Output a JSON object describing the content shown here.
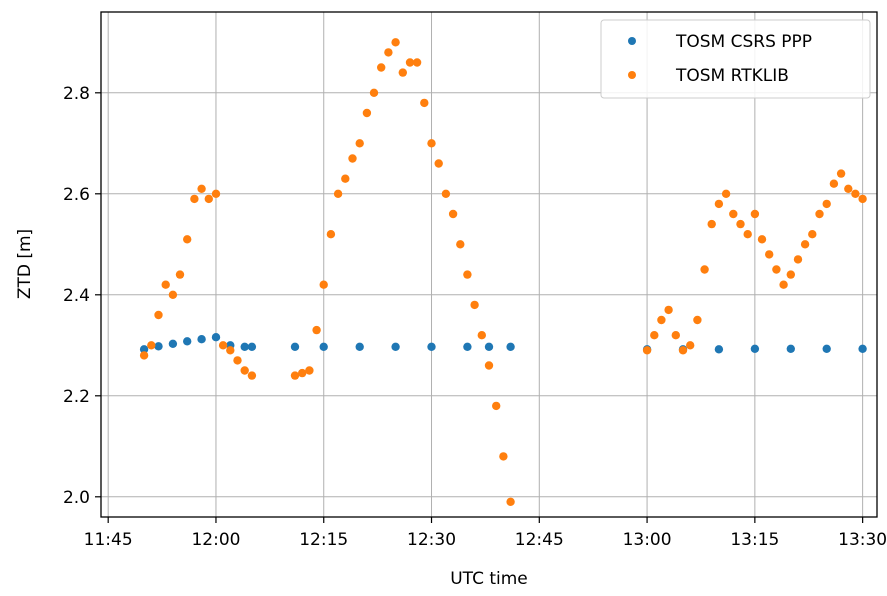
{
  "chart_data": {
    "type": "scatter",
    "xlabel": "UTC time",
    "ylabel": "ZTD [m]",
    "xlim": [
      "11:44",
      "13:32"
    ],
    "ylim": [
      1.96,
      2.96
    ],
    "x_ticks": [
      "11:45",
      "12:00",
      "12:15",
      "12:30",
      "12:45",
      "13:00",
      "13:15",
      "13:30"
    ],
    "y_ticks": [
      "2.0",
      "2.2",
      "2.4",
      "2.6",
      "2.8"
    ],
    "grid": true,
    "legend_position": "top-right",
    "series": [
      {
        "name": "TOSM CSRS PPP",
        "color": "#1f77b4",
        "points": [
          [
            "11:50",
            2.292
          ],
          [
            "11:52",
            2.298
          ],
          [
            "11:54",
            2.303
          ],
          [
            "11:56",
            2.308
          ],
          [
            "11:58",
            2.312
          ],
          [
            "12:00",
            2.316
          ],
          [
            "12:02",
            2.3
          ],
          [
            "12:04",
            2.297
          ],
          [
            "12:05",
            2.297
          ],
          [
            "12:11",
            2.297
          ],
          [
            "12:15",
            2.297
          ],
          [
            "12:20",
            2.297
          ],
          [
            "12:25",
            2.297
          ],
          [
            "12:30",
            2.297
          ],
          [
            "12:35",
            2.297
          ],
          [
            "12:38",
            2.297
          ],
          [
            "12:41",
            2.297
          ],
          [
            "13:00",
            2.292
          ],
          [
            "13:05",
            2.292
          ],
          [
            "13:10",
            2.292
          ],
          [
            "13:15",
            2.293
          ],
          [
            "13:20",
            2.293
          ],
          [
            "13:25",
            2.293
          ],
          [
            "13:30",
            2.293
          ]
        ]
      },
      {
        "name": "TOSM RTKLIB",
        "color": "#ff7f0e",
        "points": [
          [
            "11:50",
            2.28
          ],
          [
            "11:51",
            2.3
          ],
          [
            "11:52",
            2.36
          ],
          [
            "11:53",
            2.42
          ],
          [
            "11:54",
            2.4
          ],
          [
            "11:55",
            2.44
          ],
          [
            "11:56",
            2.51
          ],
          [
            "11:57",
            2.59
          ],
          [
            "11:58",
            2.61
          ],
          [
            "11:59",
            2.59
          ],
          [
            "12:00",
            2.6
          ],
          [
            "12:01",
            2.3
          ],
          [
            "12:02",
            2.29
          ],
          [
            "12:03",
            2.27
          ],
          [
            "12:04",
            2.25
          ],
          [
            "12:05",
            2.24
          ],
          [
            "12:11",
            2.24
          ],
          [
            "12:12",
            2.245
          ],
          [
            "12:13",
            2.25
          ],
          [
            "12:14",
            2.33
          ],
          [
            "12:15",
            2.42
          ],
          [
            "12:16",
            2.52
          ],
          [
            "12:17",
            2.6
          ],
          [
            "12:18",
            2.63
          ],
          [
            "12:19",
            2.67
          ],
          [
            "12:20",
            2.7
          ],
          [
            "12:21",
            2.76
          ],
          [
            "12:22",
            2.8
          ],
          [
            "12:23",
            2.85
          ],
          [
            "12:24",
            2.88
          ],
          [
            "12:25",
            2.9
          ],
          [
            "12:26",
            2.84
          ],
          [
            "12:27",
            2.86
          ],
          [
            "12:28",
            2.86
          ],
          [
            "12:29",
            2.78
          ],
          [
            "12:30",
            2.7
          ],
          [
            "12:31",
            2.66
          ],
          [
            "12:32",
            2.6
          ],
          [
            "12:33",
            2.56
          ],
          [
            "12:34",
            2.5
          ],
          [
            "12:35",
            2.44
          ],
          [
            "12:36",
            2.38
          ],
          [
            "12:37",
            2.32
          ],
          [
            "12:38",
            2.26
          ],
          [
            "12:39",
            2.18
          ],
          [
            "12:40",
            2.08
          ],
          [
            "12:41",
            1.99
          ],
          [
            "13:00",
            2.29
          ],
          [
            "13:01",
            2.32
          ],
          [
            "13:02",
            2.35
          ],
          [
            "13:03",
            2.37
          ],
          [
            "13:04",
            2.32
          ],
          [
            "13:05",
            2.29
          ],
          [
            "13:06",
            2.3
          ],
          [
            "13:07",
            2.35
          ],
          [
            "13:08",
            2.45
          ],
          [
            "13:09",
            2.54
          ],
          [
            "13:10",
            2.58
          ],
          [
            "13:11",
            2.6
          ],
          [
            "13:12",
            2.56
          ],
          [
            "13:13",
            2.54
          ],
          [
            "13:14",
            2.52
          ],
          [
            "13:15",
            2.56
          ],
          [
            "13:16",
            2.51
          ],
          [
            "13:17",
            2.48
          ],
          [
            "13:18",
            2.45
          ],
          [
            "13:19",
            2.42
          ],
          [
            "13:20",
            2.44
          ],
          [
            "13:21",
            2.47
          ],
          [
            "13:22",
            2.5
          ],
          [
            "13:23",
            2.52
          ],
          [
            "13:24",
            2.56
          ],
          [
            "13:25",
            2.58
          ],
          [
            "13:26",
            2.62
          ],
          [
            "13:27",
            2.64
          ],
          [
            "13:28",
            2.61
          ],
          [
            "13:29",
            2.6
          ],
          [
            "13:30",
            2.59
          ]
        ]
      }
    ]
  }
}
